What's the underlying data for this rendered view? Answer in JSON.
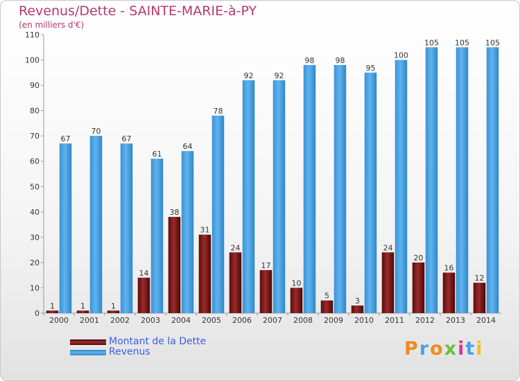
{
  "header": {
    "title": "Revenus/Dette - SAINTE-MARIE-à-PY",
    "subtitle": "(en milliers d'€)"
  },
  "brand": {
    "text": "Proxiti",
    "colors": [
      "#f08a1f",
      "#4aa3df",
      "#f08a1f",
      "#6cbf3a",
      "#d83a8a",
      "#4aa3df",
      "#f0c020"
    ]
  },
  "legend": {
    "items": [
      {
        "label": "Montant de la Dette",
        "color": "#7a1a1a"
      },
      {
        "label": "Revenus",
        "color": "#3f9ee0"
      }
    ]
  },
  "chart_data": {
    "type": "bar",
    "categories": [
      "2000",
      "2001",
      "2002",
      "2003",
      "2004",
      "2005",
      "2006",
      "2007",
      "2008",
      "2009",
      "2010",
      "2011",
      "2012",
      "2013",
      "2014"
    ],
    "series": [
      {
        "name": "Montant de la Dette",
        "color": "#7a1a1a",
        "values": [
          1,
          1,
          1,
          14,
          38,
          31,
          24,
          17,
          10,
          5,
          3,
          24,
          20,
          16,
          12
        ]
      },
      {
        "name": "Revenus",
        "color": "#3f9ee0",
        "values": [
          67,
          70,
          67,
          61,
          64,
          78,
          92,
          92,
          98,
          98,
          95,
          100,
          105,
          105,
          105
        ]
      }
    ],
    "ylim": [
      0,
      110
    ],
    "yticks": [
      0,
      10,
      20,
      30,
      40,
      50,
      60,
      70,
      80,
      90,
      100,
      110
    ],
    "grid": false,
    "legend_position": "bottom-left"
  }
}
